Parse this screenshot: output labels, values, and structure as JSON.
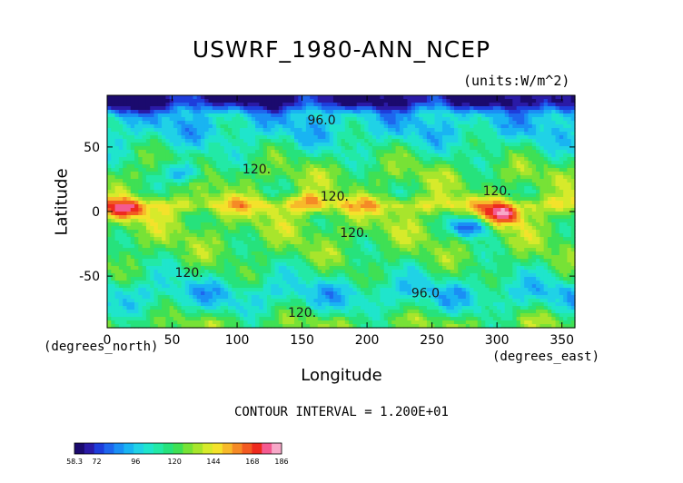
{
  "chart_data": {
    "type": "heatmap",
    "title": "USWRF_1980-ANN_NCEP",
    "units_label": "(units:W/m^2)",
    "xlabel": "Longitude",
    "ylabel": "Latitude",
    "x_unit_label": "(degrees_east)",
    "y_unit_label": "(degrees_north)",
    "xlim": [
      0,
      360
    ],
    "ylim": [
      -90,
      90
    ],
    "x_ticks": [
      0,
      50,
      100,
      150,
      200,
      250,
      300,
      350
    ],
    "y_ticks": [
      50,
      0,
      -50
    ],
    "footer": "CONTOUR INTERVAL = 1.200E+01",
    "contour_labels": [
      {
        "text": "96.0",
        "x": 165,
        "y": 71
      },
      {
        "text": "120.",
        "x": 115,
        "y": 33
      },
      {
        "text": "120.",
        "x": 175,
        "y": 12
      },
      {
        "text": "120.",
        "x": 300,
        "y": 16
      },
      {
        "text": "120.",
        "x": 190,
        "y": -16
      },
      {
        "text": "120.",
        "x": 63,
        "y": -47
      },
      {
        "text": "96.0",
        "x": 245,
        "y": -63
      },
      {
        "text": "120.",
        "x": 150,
        "y": -78
      }
    ],
    "colorbar": {
      "min": 58.3,
      "max": 186,
      "tick_labels": [
        "58.3",
        "72",
        "96",
        "120",
        "144",
        "168",
        "186"
      ],
      "tick_values": [
        58.3,
        72,
        96,
        120,
        144,
        168,
        186
      ],
      "colors": [
        "#1b0a6e",
        "#2a1aa6",
        "#1e3ddb",
        "#1e66ee",
        "#1a8ff5",
        "#19b4f2",
        "#20d2e6",
        "#1fe5cc",
        "#22e9a6",
        "#26e27c",
        "#3fe054",
        "#77e236",
        "#a8e52c",
        "#d7ea2b",
        "#f4e22b",
        "#f7b92a",
        "#f58a26",
        "#f25a22",
        "#ee2a1e",
        "#f45a90",
        "#f7a8c8"
      ]
    },
    "field_bands": [
      {
        "lat": 85,
        "value": 62
      },
      {
        "lat": 75,
        "value": 95
      },
      {
        "lat": 60,
        "value": 100
      },
      {
        "lat": 45,
        "value": 114
      },
      {
        "lat": 30,
        "value": 126
      },
      {
        "lat": 15,
        "value": 124
      },
      {
        "lat": 5,
        "value": 145
      },
      {
        "lat": -5,
        "value": 128
      },
      {
        "lat": -20,
        "value": 126
      },
      {
        "lat": -35,
        "value": 122
      },
      {
        "lat": -50,
        "value": 112
      },
      {
        "lat": -62,
        "value": 98
      },
      {
        "lat": -72,
        "value": 104
      },
      {
        "lat": -85,
        "value": 124
      }
    ],
    "hotspots": [
      {
        "x": 15,
        "y": 0,
        "value": 170
      },
      {
        "x": 305,
        "y": -3,
        "value": 180
      },
      {
        "x": 10,
        "y": 80,
        "value": 62
      },
      {
        "x": 350,
        "y": 80,
        "value": 64
      },
      {
        "x": 60,
        "y": 30,
        "value": 80
      },
      {
        "x": 280,
        "y": -12,
        "value": 75
      },
      {
        "x": 155,
        "y": 8,
        "value": 160
      }
    ]
  }
}
